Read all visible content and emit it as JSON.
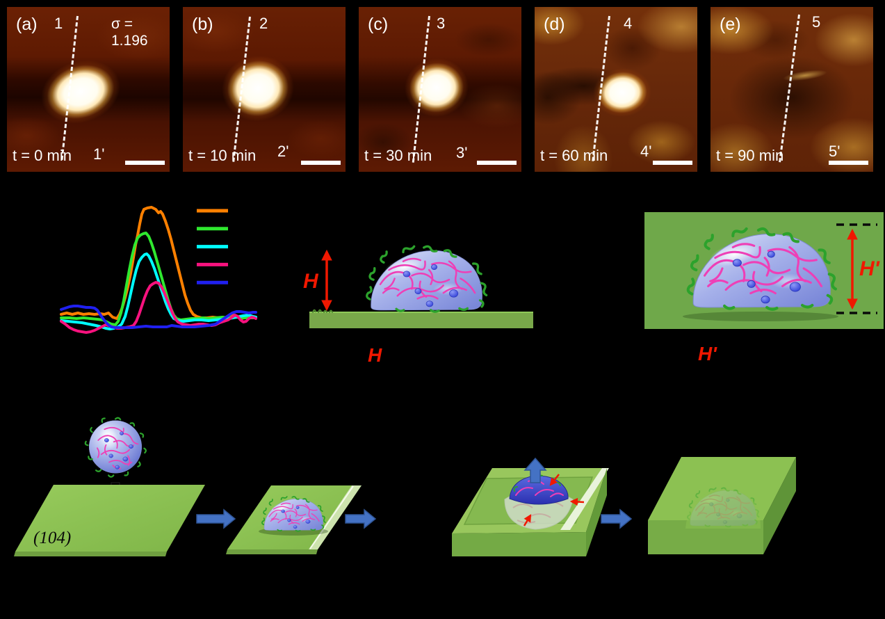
{
  "figure": {
    "afm_row": {
      "panels": [
        {
          "label": "(a)",
          "sigma": "σ = 1.196",
          "line_top_label": "1",
          "line_bottom_label": "1'",
          "time_label": "t = 0 min",
          "has_particle": true
        },
        {
          "label": "(b)",
          "line_top_label": "2",
          "line_bottom_label": "2'",
          "time_label": "t = 10 min",
          "has_particle": true
        },
        {
          "label": "(c)",
          "line_top_label": "3",
          "line_bottom_label": "3'",
          "time_label": "t = 30 min",
          "has_particle": true
        },
        {
          "label": "(d)",
          "line_top_label": "4",
          "line_bottom_label": "4'",
          "time_label": "t = 60 min",
          "has_particle": true
        },
        {
          "label": "(e)",
          "line_top_label": "5",
          "line_bottom_label": "5'",
          "time_label": "t = 90 min",
          "has_particle": false
        }
      ],
      "scale_bar_color": "#ffffff",
      "section_line_style": "white-dashed"
    },
    "height_diagrams": {
      "left_arrow_label": "H",
      "left_caption": "H",
      "right_arrow_label": "H'",
      "right_caption": "H'",
      "arrow_color": "#f01800",
      "substrate_color": "#79a84a",
      "crystal_color": "#6fa84a",
      "dashed_reference_color": "#0a0a0a"
    },
    "schematic": {
      "substrate_label": "(104)",
      "step_arrow_color": "#4472c4",
      "drop_arrow_color": "#000000",
      "growth_arrow_color": "#f01800",
      "slab_color": "#8cc152",
      "microgel_body_color": "#9aa6e4",
      "network_color": "#ee3fb6",
      "crosslink_color": "#3d4ee8",
      "corona_color": "#2ca22c"
    }
  },
  "chart_data": {
    "type": "line",
    "title": "",
    "xlabel": "",
    "ylabel": "",
    "axes_visible": false,
    "note": "Height cross-section profiles; axis/legend text not visible against black background",
    "coordinate_space": "figure pixels, y down, baseline ≈ y 458",
    "legend": {
      "labels_visible": false,
      "position": "upper right",
      "colors": [
        "#ff8000",
        "#2fe82f",
        "#00ffff",
        "#f8127e",
        "#2020f0"
      ]
    },
    "series": [
      {
        "name": "profile-orange",
        "color": "#ff8000",
        "points": [
          [
            88,
            452
          ],
          [
            96,
            450
          ],
          [
            104,
            452
          ],
          [
            112,
            450
          ],
          [
            120,
            452
          ],
          [
            128,
            451
          ],
          [
            136,
            452
          ],
          [
            144,
            451
          ],
          [
            150,
            452
          ],
          [
            156,
            450
          ],
          [
            162,
            456
          ],
          [
            168,
            458
          ],
          [
            172,
            452
          ],
          [
            176,
            442
          ],
          [
            180,
            428
          ],
          [
            184,
            412
          ],
          [
            188,
            393
          ],
          [
            192,
            370
          ],
          [
            195,
            352
          ],
          [
            198,
            338
          ],
          [
            201,
            322
          ],
          [
            204,
            308
          ],
          [
            207,
            301
          ],
          [
            212,
            299
          ],
          [
            218,
            298
          ],
          [
            224,
            301
          ],
          [
            228,
            306
          ],
          [
            231,
            304
          ],
          [
            234,
            308
          ],
          [
            238,
            318
          ],
          [
            242,
            330
          ],
          [
            246,
            344
          ],
          [
            250,
            360
          ],
          [
            254,
            376
          ],
          [
            258,
            392
          ],
          [
            262,
            408
          ],
          [
            266,
            424
          ],
          [
            270,
            436
          ],
          [
            274,
            446
          ],
          [
            278,
            452
          ],
          [
            283,
            455
          ],
          [
            290,
            457
          ],
          [
            298,
            457
          ],
          [
            306,
            456
          ],
          [
            314,
            457
          ],
          [
            322,
            458
          ],
          [
            328,
            455
          ],
          [
            334,
            452
          ],
          [
            340,
            455
          ],
          [
            346,
            458
          ],
          [
            352,
            457
          ],
          [
            358,
            455
          ],
          [
            364,
            456
          ],
          [
            368,
            456
          ]
        ]
      },
      {
        "name": "profile-green",
        "color": "#2fe82f",
        "points": [
          [
            88,
            457
          ],
          [
            100,
            457
          ],
          [
            110,
            458
          ],
          [
            120,
            457
          ],
          [
            130,
            458
          ],
          [
            140,
            459
          ],
          [
            148,
            460
          ],
          [
            154,
            463
          ],
          [
            160,
            466
          ],
          [
            166,
            467
          ],
          [
            170,
            462
          ],
          [
            174,
            450
          ],
          [
            178,
            432
          ],
          [
            182,
            410
          ],
          [
            186,
            388
          ],
          [
            190,
            368
          ],
          [
            194,
            352
          ],
          [
            198,
            342
          ],
          [
            202,
            338
          ],
          [
            206,
            336
          ],
          [
            210,
            335
          ],
          [
            214,
            340
          ],
          [
            218,
            350
          ],
          [
            222,
            362
          ],
          [
            226,
            376
          ],
          [
            230,
            390
          ],
          [
            234,
            404
          ],
          [
            238,
            418
          ],
          [
            242,
            432
          ],
          [
            246,
            444
          ],
          [
            250,
            453
          ],
          [
            254,
            458
          ],
          [
            260,
            460
          ],
          [
            268,
            459
          ],
          [
            276,
            458
          ],
          [
            284,
            458
          ],
          [
            292,
            457
          ],
          [
            300,
            458
          ],
          [
            310,
            457
          ],
          [
            320,
            456
          ],
          [
            330,
            457
          ],
          [
            340,
            456
          ],
          [
            350,
            457
          ],
          [
            360,
            457
          ],
          [
            368,
            457
          ]
        ]
      },
      {
        "name": "profile-cyan",
        "color": "#00ffff",
        "points": [
          [
            88,
            461
          ],
          [
            98,
            462
          ],
          [
            108,
            463
          ],
          [
            118,
            464
          ],
          [
            128,
            466
          ],
          [
            138,
            468
          ],
          [
            146,
            470
          ],
          [
            152,
            472
          ],
          [
            158,
            473
          ],
          [
            164,
            472
          ],
          [
            170,
            470
          ],
          [
            175,
            466
          ],
          [
            180,
            455
          ],
          [
            184,
            440
          ],
          [
            188,
            422
          ],
          [
            192,
            404
          ],
          [
            196,
            388
          ],
          [
            200,
            376
          ],
          [
            204,
            370
          ],
          [
            208,
            366
          ],
          [
            211,
            365
          ],
          [
            214,
            368
          ],
          [
            218,
            376
          ],
          [
            222,
            386
          ],
          [
            226,
            398
          ],
          [
            230,
            410
          ],
          [
            234,
            422
          ],
          [
            238,
            434
          ],
          [
            242,
            444
          ],
          [
            246,
            452
          ],
          [
            250,
            458
          ],
          [
            256,
            461
          ],
          [
            264,
            462
          ],
          [
            272,
            461
          ],
          [
            280,
            460
          ],
          [
            290,
            460
          ],
          [
            300,
            461
          ],
          [
            310,
            460
          ],
          [
            320,
            459
          ],
          [
            330,
            458
          ],
          [
            340,
            456
          ],
          [
            350,
            454
          ],
          [
            358,
            453
          ],
          [
            364,
            455
          ],
          [
            368,
            456
          ]
        ]
      },
      {
        "name": "profile-magenta",
        "color": "#f8127e",
        "points": [
          [
            88,
            462
          ],
          [
            94,
            466
          ],
          [
            100,
            471
          ],
          [
            106,
            474
          ],
          [
            112,
            476
          ],
          [
            118,
            477
          ],
          [
            124,
            478
          ],
          [
            130,
            477
          ],
          [
            136,
            475
          ],
          [
            142,
            472
          ],
          [
            148,
            469
          ],
          [
            152,
            467
          ],
          [
            156,
            468
          ],
          [
            162,
            470
          ],
          [
            168,
            472
          ],
          [
            174,
            472
          ],
          [
            180,
            471
          ],
          [
            186,
            470
          ],
          [
            192,
            468
          ],
          [
            196,
            462
          ],
          [
            200,
            452
          ],
          [
            204,
            440
          ],
          [
            208,
            428
          ],
          [
            212,
            418
          ],
          [
            216,
            411
          ],
          [
            220,
            408
          ],
          [
            224,
            406
          ],
          [
            228,
            407
          ],
          [
            232,
            412
          ],
          [
            236,
            420
          ],
          [
            240,
            430
          ],
          [
            244,
            440
          ],
          [
            248,
            450
          ],
          [
            252,
            458
          ],
          [
            256,
            463
          ],
          [
            262,
            466
          ],
          [
            268,
            467
          ],
          [
            274,
            468
          ],
          [
            280,
            467
          ],
          [
            286,
            466
          ],
          [
            292,
            466
          ],
          [
            298,
            467
          ],
          [
            304,
            468
          ],
          [
            310,
            467
          ],
          [
            316,
            464
          ],
          [
            322,
            462
          ],
          [
            328,
            460
          ],
          [
            334,
            456
          ],
          [
            338,
            453
          ],
          [
            342,
            455
          ],
          [
            346,
            460
          ],
          [
            350,
            463
          ],
          [
            354,
            462
          ],
          [
            358,
            458
          ],
          [
            362,
            456
          ],
          [
            366,
            457
          ],
          [
            368,
            458
          ]
        ]
      },
      {
        "name": "profile-blue",
        "color": "#2020f0",
        "points": [
          [
            88,
            445
          ],
          [
            94,
            443
          ],
          [
            100,
            441
          ],
          [
            106,
            440
          ],
          [
            112,
            440
          ],
          [
            118,
            441
          ],
          [
            124,
            442
          ],
          [
            130,
            442
          ],
          [
            136,
            443
          ],
          [
            140,
            446
          ],
          [
            144,
            452
          ],
          [
            148,
            458
          ],
          [
            152,
            463
          ],
          [
            156,
            467
          ],
          [
            160,
            470
          ],
          [
            166,
            471
          ],
          [
            172,
            471
          ],
          [
            180,
            471
          ],
          [
            190,
            471
          ],
          [
            200,
            470
          ],
          [
            210,
            469
          ],
          [
            220,
            470
          ],
          [
            230,
            470
          ],
          [
            240,
            470
          ],
          [
            247,
            468
          ],
          [
            254,
            469
          ],
          [
            262,
            470
          ],
          [
            270,
            470
          ],
          [
            280,
            470
          ],
          [
            290,
            469
          ],
          [
            300,
            468
          ],
          [
            310,
            466
          ],
          [
            316,
            462
          ],
          [
            322,
            458
          ],
          [
            328,
            454
          ],
          [
            334,
            450
          ],
          [
            340,
            448
          ],
          [
            346,
            448
          ],
          [
            352,
            449
          ],
          [
            358,
            450
          ],
          [
            364,
            449
          ],
          [
            368,
            449
          ]
        ]
      }
    ]
  }
}
